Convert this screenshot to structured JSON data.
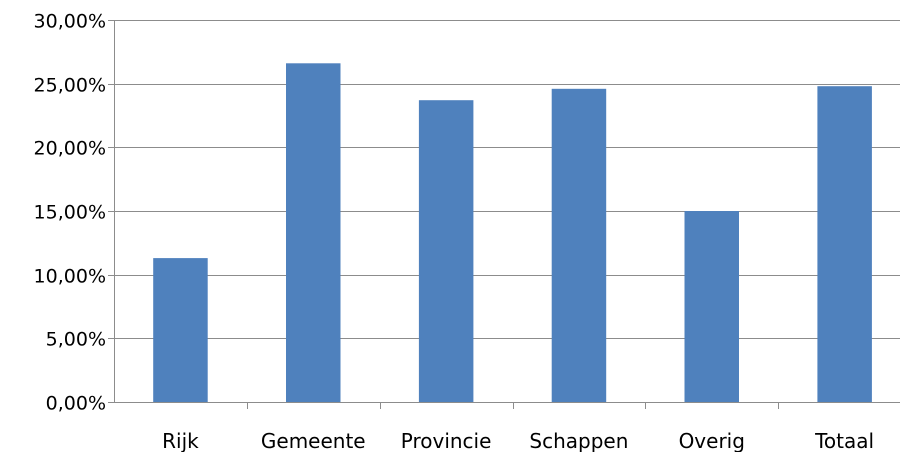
{
  "chart_data": {
    "type": "bar",
    "categories": [
      "Rijk",
      "Gemeente",
      "Provincie",
      "Schappen",
      "Overig",
      "Totaal"
    ],
    "values": [
      11.3,
      26.6,
      23.7,
      24.6,
      15.0,
      24.8
    ],
    "ylim": [
      0,
      30
    ],
    "y_ticks": [
      0,
      5,
      10,
      15,
      20,
      25,
      30
    ],
    "y_tick_labels": [
      "0,00%",
      "5,00%",
      "10,00%",
      "15,00%",
      "20,00%",
      "25,00%",
      "30,00%"
    ],
    "grid": true,
    "legend": "none",
    "bar_color": "#4f81bd"
  }
}
